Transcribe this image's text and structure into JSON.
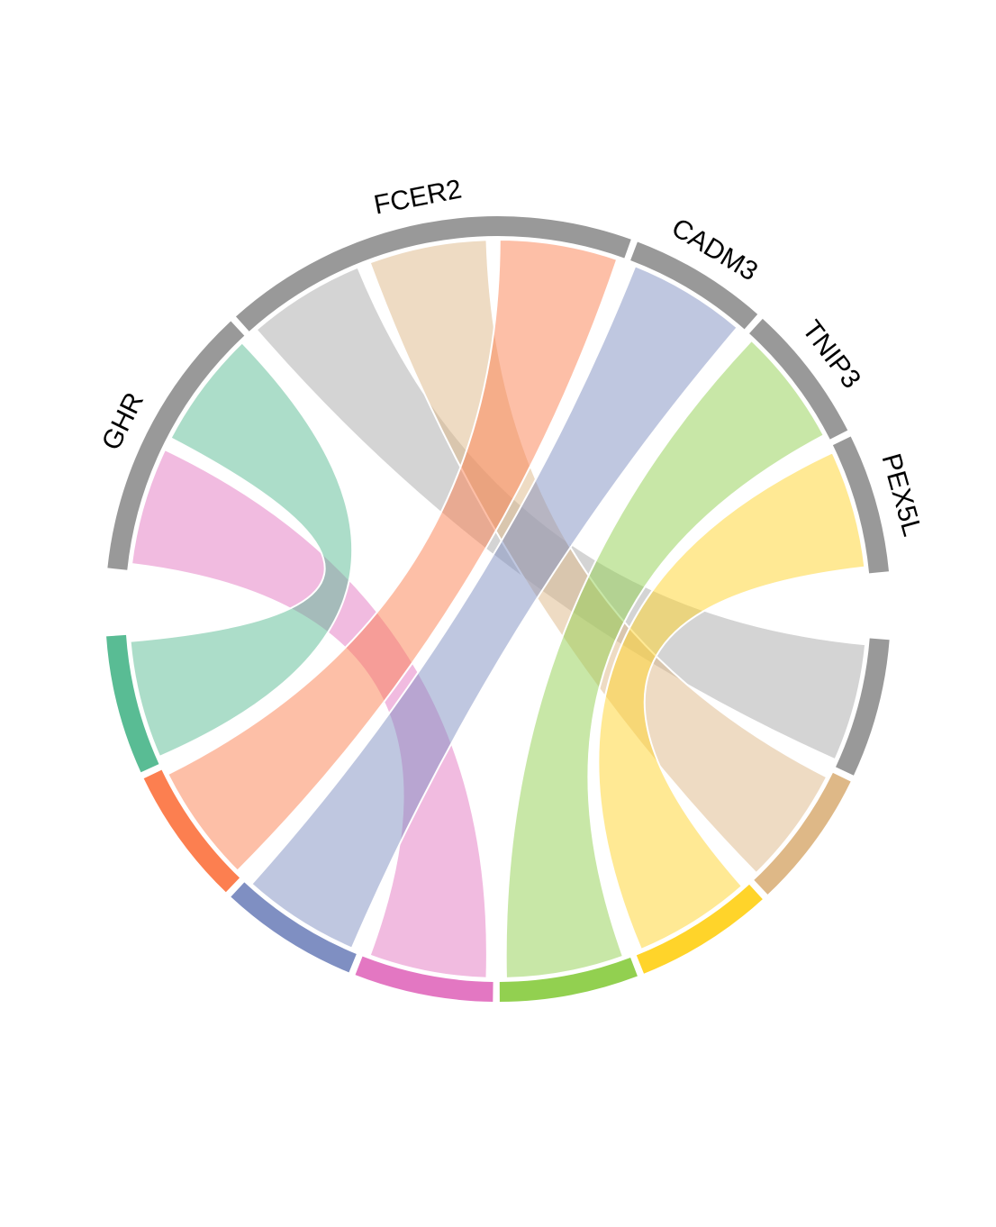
{
  "chart_data": {
    "type": "chord",
    "title": "",
    "genes": [
      {
        "name": "GHR",
        "color": "#999999"
      },
      {
        "name": "FCER2",
        "color": "#999999"
      },
      {
        "name": "CADM3",
        "color": "#999999"
      },
      {
        "name": "TNIP3",
        "color": "#999999"
      },
      {
        "name": "PEX5L",
        "color": "#999999"
      }
    ],
    "targets": [
      {
        "name": "",
        "color": "#999999"
      },
      {
        "name": "",
        "color": "#DEB887"
      },
      {
        "name": "",
        "color": "#FFD42A"
      },
      {
        "name": "",
        "color": "#92D050"
      },
      {
        "name": "",
        "color": "#E377C2"
      },
      {
        "name": "",
        "color": "#7F8FC2"
      },
      {
        "name": "",
        "color": "#FC7F50"
      },
      {
        "name": "",
        "color": "#59BC94"
      }
    ],
    "links": [
      {
        "gene": "GHR",
        "target_index": 4,
        "value": 1,
        "color": "#E377C2"
      },
      {
        "gene": "GHR",
        "target_index": 7,
        "value": 1,
        "color": "#59BC94"
      },
      {
        "gene": "FCER2",
        "target_index": 0,
        "value": 1,
        "color": "#AAAAAA"
      },
      {
        "gene": "FCER2",
        "target_index": 1,
        "value": 1,
        "color": "#DEB887"
      },
      {
        "gene": "FCER2",
        "target_index": 6,
        "value": 1,
        "color": "#FC7F50"
      },
      {
        "gene": "CADM3",
        "target_index": 5,
        "value": 1,
        "color": "#7F8FC2"
      },
      {
        "gene": "TNIP3",
        "target_index": 3,
        "value": 1,
        "color": "#92D050"
      },
      {
        "gene": "PEX5L",
        "target_index": 2,
        "value": 1,
        "color": "#FFD42A"
      }
    ]
  }
}
